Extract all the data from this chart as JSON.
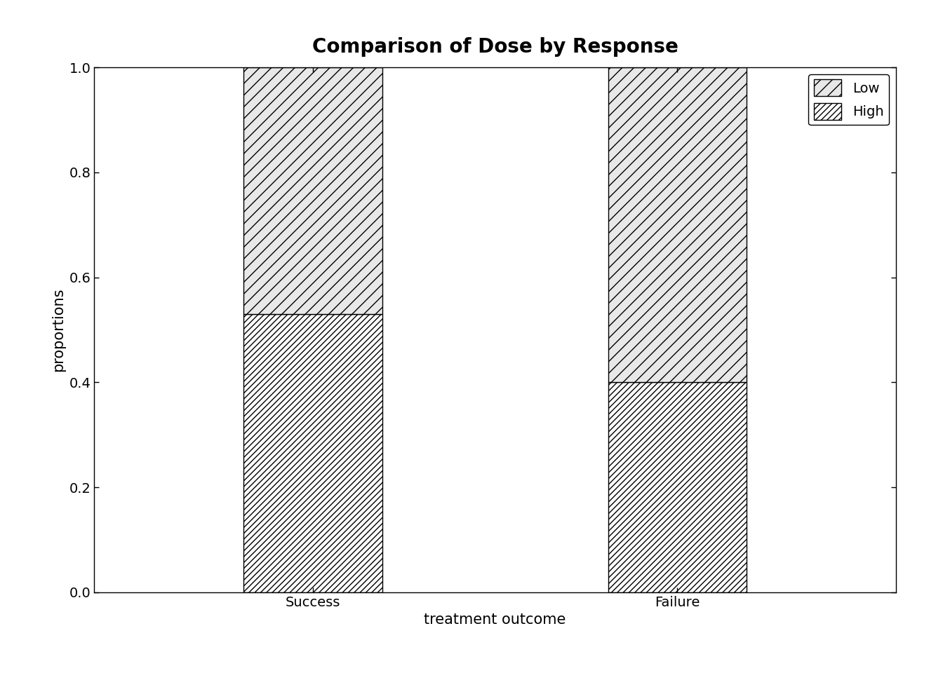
{
  "title": "Comparison of Dose by Response",
  "xlabel": "treatment outcome",
  "ylabel": "proportions",
  "categories": [
    "Success",
    "Failure"
  ],
  "high_proportions": [
    0.53,
    0.4
  ],
  "low_proportions": [
    0.47,
    0.6
  ],
  "bar_width": 0.38,
  "bar_positions": [
    1,
    2
  ],
  "xlim": [
    0.4,
    2.6
  ],
  "ylim": [
    0.0,
    1.0
  ],
  "yticks": [
    0.0,
    0.2,
    0.4,
    0.6,
    0.8,
    1.0
  ],
  "background_color": "#ffffff",
  "bar_edge_color": "#000000",
  "low_facecolor": "#e8e8e8",
  "high_facecolor": "#c0c0c0",
  "title_fontsize": 20,
  "axis_label_fontsize": 15,
  "tick_fontsize": 14,
  "legend_fontsize": 14
}
